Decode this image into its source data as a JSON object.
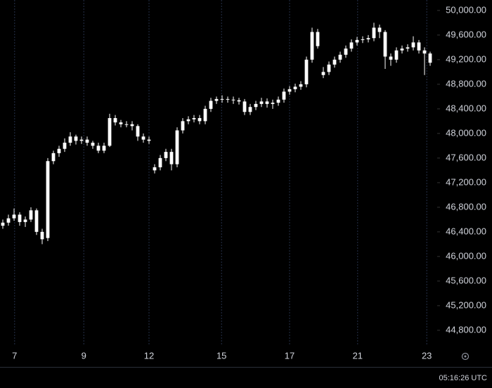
{
  "chart_data": {
    "type": "candlestick",
    "color": "#ffffff",
    "grid": true,
    "clock": "05:16:26 UTC",
    "open": [
      46500,
      46550,
      46620,
      46680,
      46560,
      46600,
      46750,
      46400,
      46300,
      47550,
      47680,
      47750,
      47850,
      47950,
      47880,
      47900,
      47850,
      47800,
      47720,
      47800,
      48250,
      48180,
      48150,
      48150,
      48120,
      47950,
      47900,
      47400,
      47450,
      47600,
      47700,
      47500,
      48050,
      48200,
      48230,
      48250,
      48200,
      48400,
      48530,
      48560,
      48560,
      48550,
      48540,
      48520,
      48350,
      48430,
      48480,
      48520,
      48480,
      48500,
      48550,
      48680,
      48720,
      48760,
      48800,
      49200,
      49650,
      48950,
      49000,
      49120,
      49200,
      49280,
      49380,
      49480,
      49520,
      49530,
      49550,
      49720,
      49650,
      49250,
      49200,
      49350,
      49380,
      49400,
      49480,
      49350,
      49300
    ],
    "high": [
      46600,
      46680,
      46780,
      46720,
      46650,
      46800,
      46780,
      46450,
      47600,
      47720,
      47800,
      47920,
      48020,
      47980,
      47950,
      47950,
      47880,
      47850,
      47850,
      48320,
      48300,
      48220,
      48200,
      48200,
      48150,
      48000,
      47950,
      47500,
      47650,
      47750,
      47750,
      48100,
      48250,
      48280,
      48300,
      48300,
      48450,
      48580,
      48600,
      48620,
      48600,
      48600,
      48580,
      48560,
      48480,
      48530,
      48580,
      48570,
      48550,
      48600,
      48730,
      48770,
      48810,
      48850,
      49250,
      49720,
      49700,
      49080,
      49170,
      49250,
      49330,
      49430,
      49530,
      49570,
      49580,
      49600,
      49800,
      49770,
      49680,
      49300,
      49400,
      49430,
      49450,
      49580,
      49520,
      49400,
      49330
    ],
    "low": [
      46450,
      46500,
      46580,
      46500,
      46480,
      46560,
      46350,
      46200,
      46250,
      47500,
      47620,
      47700,
      47800,
      47820,
      47830,
      47800,
      47750,
      47680,
      47680,
      47780,
      48130,
      48100,
      48100,
      48050,
      47880,
      47850,
      47830,
      47350,
      47400,
      47550,
      47400,
      47450,
      48000,
      48150,
      48180,
      48150,
      48150,
      48350,
      48480,
      48500,
      48500,
      48480,
      48470,
      48300,
      48300,
      48380,
      48430,
      48420,
      48400,
      48450,
      48500,
      48630,
      48670,
      48710,
      48750,
      49150,
      49380,
      48900,
      48950,
      49070,
      49150,
      49230,
      49330,
      49430,
      49470,
      49480,
      49500,
      49550,
      49050,
      49100,
      49150,
      49300,
      49330,
      49350,
      49300,
      48950,
      49100
    ],
    "close": [
      46550,
      46620,
      46680,
      46560,
      46600,
      46750,
      46400,
      46280,
      47550,
      47680,
      47750,
      47850,
      47950,
      47880,
      47900,
      47850,
      47800,
      47720,
      47800,
      48250,
      48180,
      48150,
      48150,
      48120,
      47950,
      47900,
      47880,
      47450,
      47600,
      47700,
      47500,
      48050,
      48200,
      48230,
      48250,
      48200,
      48400,
      48530,
      48560,
      48560,
      48550,
      48540,
      48520,
      48350,
      48430,
      48480,
      48520,
      48480,
      48500,
      48550,
      48680,
      48720,
      48760,
      48800,
      49200,
      49650,
      49420,
      49000,
      49120,
      49200,
      49280,
      49380,
      49480,
      49520,
      49530,
      49550,
      49720,
      49650,
      49250,
      49200,
      49350,
      49380,
      49400,
      49480,
      49350,
      49300,
      49150
    ],
    "xlim": [
      0,
      77.5
    ],
    "xticks": [
      {
        "value": 2.6,
        "label": "7"
      },
      {
        "value": 14.9,
        "label": "9"
      },
      {
        "value": 26.5,
        "label": "12"
      },
      {
        "value": 39.4,
        "label": "15"
      },
      {
        "value": 51.5,
        "label": "17"
      },
      {
        "value": 63.6,
        "label": "21"
      },
      {
        "value": 75.9,
        "label": "23"
      }
    ],
    "ylim": [
      44570,
      50170
    ],
    "yticks": [
      {
        "value": 44800,
        "label": "44,800.00"
      },
      {
        "value": 45200,
        "label": "45,200.00"
      },
      {
        "value": 45600,
        "label": "45,600.00"
      },
      {
        "value": 46000,
        "label": "46,000.00"
      },
      {
        "value": 46400,
        "label": "46,400.00"
      },
      {
        "value": 46800,
        "label": "46,800.00"
      },
      {
        "value": 47200,
        "label": "47,200.00"
      },
      {
        "value": 47600,
        "label": "47,600.00"
      },
      {
        "value": 48000,
        "label": "48,000.00"
      },
      {
        "value": 48400,
        "label": "48,400.00"
      },
      {
        "value": 48800,
        "label": "48,800.00"
      },
      {
        "value": 49200,
        "label": "49,200.00"
      },
      {
        "value": 49600,
        "label": "49,600.00"
      },
      {
        "value": 50000,
        "label": "50,000.00"
      }
    ]
  }
}
